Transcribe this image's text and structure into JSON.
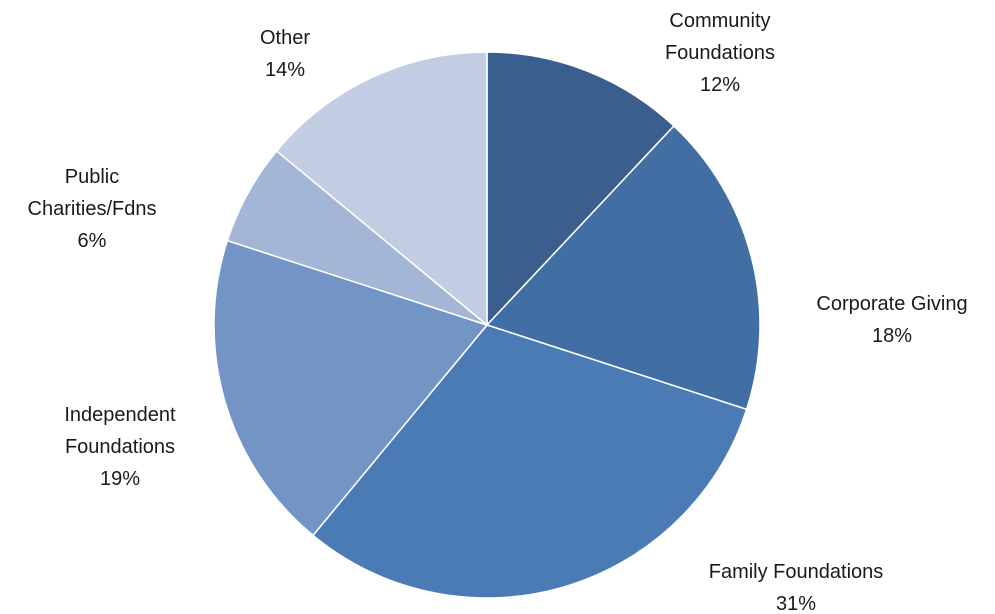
{
  "chart_data": {
    "type": "pie",
    "title": "",
    "slices": [
      {
        "label_lines": [
          "Community",
          "Foundations"
        ],
        "value": 12,
        "percent_label": "12%",
        "color": "#3a5f8f"
      },
      {
        "label_lines": [
          "Corporate Giving"
        ],
        "value": 18,
        "percent_label": "18%",
        "color": "#426fa3"
      },
      {
        "label_lines": [
          "Family Foundations"
        ],
        "value": 31,
        "percent_label": "31%",
        "color": "#4a7bb5"
      },
      {
        "label_lines": [
          "Independent",
          "Foundations"
        ],
        "value": 19,
        "percent_label": "19%",
        "color": "#7295c6"
      },
      {
        "label_lines": [
          "Public",
          "Charities/Fdns"
        ],
        "value": 6,
        "percent_label": "6%",
        "color": "#a3b6d6"
      },
      {
        "label_lines": [
          "Other"
        ],
        "value": 14,
        "percent_label": "14%",
        "color": "#c2cde3"
      }
    ]
  }
}
